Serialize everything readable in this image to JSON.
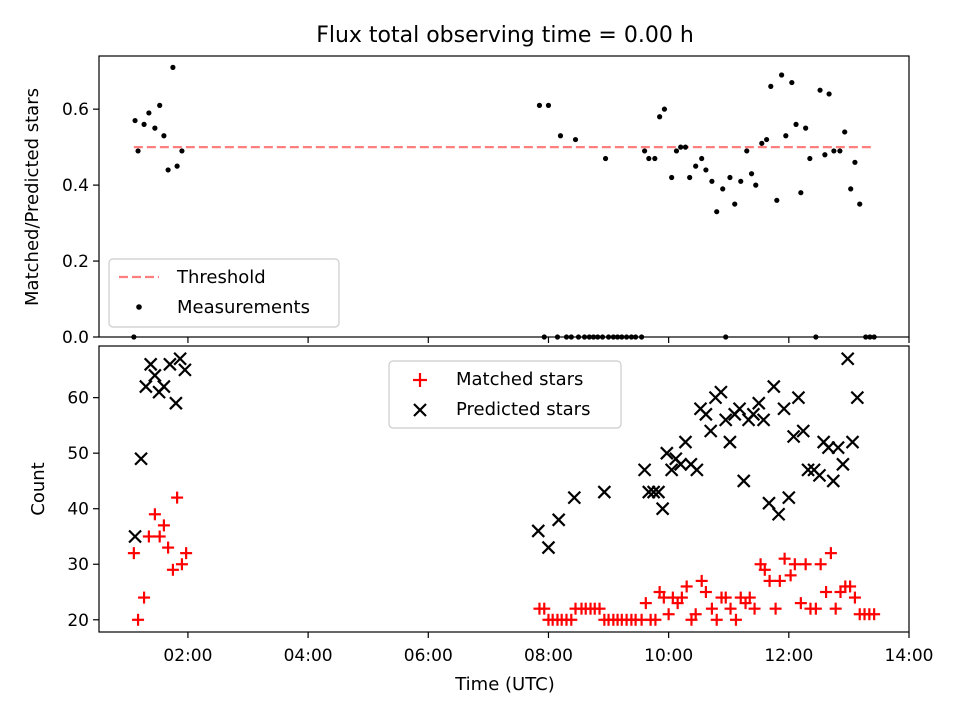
{
  "title": "Flux total observing time = 0.00 h",
  "chart_data": [
    {
      "type": "scatter",
      "panel": "top",
      "ylabel": "Matched/Predicted stars",
      "ylim": [
        0,
        0.74
      ],
      "yticks": [
        0.0,
        0.2,
        0.4,
        0.6
      ],
      "ytick_labels": [
        "0.0",
        "0.2",
        "0.4",
        "0.6"
      ],
      "xlim": [
        0.52,
        14.0
      ],
      "threshold": {
        "name": "Threshold",
        "value": 0.5,
        "x_range": [
          1.1,
          13.4
        ],
        "color": "#ff7f7f"
      },
      "legend": {
        "position": "lower-left",
        "entries": [
          {
            "label": "Threshold",
            "kind": "dashed-line",
            "color": "#ff7f7f"
          },
          {
            "label": "Measurements",
            "kind": "dot",
            "color": "#000000"
          }
        ]
      },
      "series": [
        {
          "name": "Measurements",
          "color": "#000000",
          "points": [
            [
              1.1,
              0.0
            ],
            [
              1.12,
              0.57
            ],
            [
              1.17,
              0.49
            ],
            [
              1.27,
              0.56
            ],
            [
              1.35,
              0.59
            ],
            [
              1.45,
              0.55
            ],
            [
              1.53,
              0.61
            ],
            [
              1.6,
              0.53
            ],
            [
              1.67,
              0.44
            ],
            [
              1.75,
              0.71
            ],
            [
              1.82,
              0.45
            ],
            [
              1.9,
              0.49
            ],
            [
              7.85,
              0.61
            ],
            [
              7.93,
              0.0
            ],
            [
              8.0,
              0.61
            ],
            [
              8.15,
              0.0
            ],
            [
              8.2,
              0.53
            ],
            [
              8.3,
              0.0
            ],
            [
              8.38,
              0.0
            ],
            [
              8.45,
              0.52
            ],
            [
              8.5,
              0.0
            ],
            [
              8.6,
              0.0
            ],
            [
              8.68,
              0.0
            ],
            [
              8.75,
              0.0
            ],
            [
              8.82,
              0.0
            ],
            [
              8.9,
              0.0
            ],
            [
              8.95,
              0.47
            ],
            [
              9.0,
              0.0
            ],
            [
              9.08,
              0.0
            ],
            [
              9.15,
              0.0
            ],
            [
              9.22,
              0.0
            ],
            [
              9.3,
              0.0
            ],
            [
              9.38,
              0.0
            ],
            [
              9.45,
              0.0
            ],
            [
              9.55,
              0.0
            ],
            [
              9.6,
              0.49
            ],
            [
              9.67,
              0.47
            ],
            [
              9.77,
              0.47
            ],
            [
              9.85,
              0.58
            ],
            [
              9.93,
              0.6
            ],
            [
              10.05,
              0.42
            ],
            [
              10.13,
              0.49
            ],
            [
              10.2,
              0.5
            ],
            [
              10.28,
              0.5
            ],
            [
              10.35,
              0.42
            ],
            [
              10.45,
              0.45
            ],
            [
              10.55,
              0.47
            ],
            [
              10.62,
              0.44
            ],
            [
              10.72,
              0.41
            ],
            [
              10.8,
              0.33
            ],
            [
              10.9,
              0.39
            ],
            [
              10.95,
              0.0
            ],
            [
              11.02,
              0.42
            ],
            [
              11.1,
              0.35
            ],
            [
              11.2,
              0.41
            ],
            [
              11.3,
              0.49
            ],
            [
              11.38,
              0.43
            ],
            [
              11.45,
              0.4
            ],
            [
              11.55,
              0.51
            ],
            [
              11.63,
              0.52
            ],
            [
              11.7,
              0.66
            ],
            [
              11.8,
              0.36
            ],
            [
              11.88,
              0.69
            ],
            [
              11.95,
              0.53
            ],
            [
              12.05,
              0.67
            ],
            [
              12.12,
              0.56
            ],
            [
              12.2,
              0.38
            ],
            [
              12.28,
              0.55
            ],
            [
              12.35,
              0.47
            ],
            [
              12.45,
              0.0
            ],
            [
              12.52,
              0.65
            ],
            [
              12.6,
              0.48
            ],
            [
              12.67,
              0.64
            ],
            [
              12.75,
              0.49
            ],
            [
              12.85,
              0.49
            ],
            [
              12.93,
              0.54
            ],
            [
              13.03,
              0.39
            ],
            [
              13.1,
              0.46
            ],
            [
              13.18,
              0.35
            ],
            [
              13.28,
              0.0
            ],
            [
              13.35,
              0.0
            ],
            [
              13.42,
              0.0
            ]
          ]
        }
      ]
    },
    {
      "type": "scatter",
      "panel": "bottom",
      "xlabel": "Time (UTC)",
      "ylabel": "Count",
      "xlim": [
        0.52,
        14.0
      ],
      "xticks": [
        2,
        4,
        6,
        8,
        10,
        12,
        14
      ],
      "xtick_labels": [
        "02:00",
        "04:00",
        "06:00",
        "08:00",
        "10:00",
        "12:00",
        "14:00"
      ],
      "ylim": [
        17.8,
        69.3
      ],
      "yticks": [
        20,
        30,
        40,
        50,
        60
      ],
      "ytick_labels": [
        "20",
        "30",
        "40",
        "50",
        "60"
      ],
      "legend": {
        "position": "upper-center",
        "entries": [
          {
            "label": "Matched stars",
            "kind": "plus",
            "color": "#ff0000"
          },
          {
            "label": "Predicted stars",
            "kind": "cross",
            "color": "#000000"
          }
        ]
      },
      "series": [
        {
          "name": "Matched stars",
          "color": "#ff0000",
          "marker": "plus",
          "points": [
            [
              1.1,
              32
            ],
            [
              1.17,
              20
            ],
            [
              1.27,
              24
            ],
            [
              1.35,
              35
            ],
            [
              1.45,
              39
            ],
            [
              1.53,
              35
            ],
            [
              1.6,
              37
            ],
            [
              1.67,
              33
            ],
            [
              1.75,
              29
            ],
            [
              1.82,
              42
            ],
            [
              1.9,
              30
            ],
            [
              1.97,
              32
            ],
            [
              7.85,
              22
            ],
            [
              7.93,
              22
            ],
            [
              8.0,
              20
            ],
            [
              8.07,
              20
            ],
            [
              8.15,
              20
            ],
            [
              8.22,
              20
            ],
            [
              8.3,
              20
            ],
            [
              8.38,
              20
            ],
            [
              8.45,
              22
            ],
            [
              8.55,
              22
            ],
            [
              8.62,
              22
            ],
            [
              8.7,
              22
            ],
            [
              8.77,
              22
            ],
            [
              8.85,
              22
            ],
            [
              8.93,
              20
            ],
            [
              9.0,
              20
            ],
            [
              9.08,
              20
            ],
            [
              9.15,
              20
            ],
            [
              9.22,
              20
            ],
            [
              9.3,
              20
            ],
            [
              9.38,
              20
            ],
            [
              9.45,
              20
            ],
            [
              9.55,
              20
            ],
            [
              9.62,
              23
            ],
            [
              9.7,
              20
            ],
            [
              9.78,
              20
            ],
            [
              9.85,
              25
            ],
            [
              9.92,
              24
            ],
            [
              10.0,
              21
            ],
            [
              10.07,
              24
            ],
            [
              10.15,
              23
            ],
            [
              10.22,
              24
            ],
            [
              10.3,
              26
            ],
            [
              10.38,
              20
            ],
            [
              10.45,
              21
            ],
            [
              10.55,
              27
            ],
            [
              10.62,
              25
            ],
            [
              10.72,
              22
            ],
            [
              10.8,
              20
            ],
            [
              10.88,
              24
            ],
            [
              10.95,
              24
            ],
            [
              11.03,
              22
            ],
            [
              11.12,
              20
            ],
            [
              11.2,
              24
            ],
            [
              11.28,
              23
            ],
            [
              11.35,
              24
            ],
            [
              11.43,
              22
            ],
            [
              11.53,
              30
            ],
            [
              11.6,
              29
            ],
            [
              11.68,
              27
            ],
            [
              11.78,
              22
            ],
            [
              11.85,
              27
            ],
            [
              11.93,
              31
            ],
            [
              12.03,
              28
            ],
            [
              12.1,
              30
            ],
            [
              12.2,
              23
            ],
            [
              12.28,
              30
            ],
            [
              12.36,
              22
            ],
            [
              12.45,
              22
            ],
            [
              12.53,
              30
            ],
            [
              12.62,
              25
            ],
            [
              12.7,
              32
            ],
            [
              12.78,
              22
            ],
            [
              12.86,
              25
            ],
            [
              12.94,
              26
            ],
            [
              13.02,
              26
            ],
            [
              13.1,
              24
            ],
            [
              13.18,
              21
            ],
            [
              13.26,
              21
            ],
            [
              13.34,
              21
            ],
            [
              13.42,
              21
            ]
          ]
        },
        {
          "name": "Predicted stars",
          "color": "#000000",
          "marker": "cross",
          "points": [
            [
              1.12,
              35
            ],
            [
              1.22,
              49
            ],
            [
              1.3,
              62
            ],
            [
              1.38,
              66
            ],
            [
              1.45,
              64
            ],
            [
              1.52,
              61
            ],
            [
              1.6,
              62
            ],
            [
              1.7,
              66
            ],
            [
              1.8,
              59
            ],
            [
              1.87,
              67
            ],
            [
              1.95,
              65
            ],
            [
              7.83,
              36
            ],
            [
              8.0,
              33
            ],
            [
              8.17,
              38
            ],
            [
              8.43,
              42
            ],
            [
              8.93,
              43
            ],
            [
              9.6,
              47
            ],
            [
              9.67,
              43
            ],
            [
              9.75,
              43
            ],
            [
              9.83,
              43
            ],
            [
              9.9,
              40
            ],
            [
              9.97,
              50
            ],
            [
              10.05,
              47
            ],
            [
              10.12,
              49
            ],
            [
              10.2,
              48
            ],
            [
              10.28,
              52
            ],
            [
              10.37,
              48
            ],
            [
              10.47,
              47
            ],
            [
              10.53,
              58
            ],
            [
              10.62,
              57
            ],
            [
              10.7,
              54
            ],
            [
              10.78,
              60
            ],
            [
              10.87,
              61
            ],
            [
              10.95,
              56
            ],
            [
              11.02,
              52
            ],
            [
              11.1,
              57
            ],
            [
              11.18,
              58
            ],
            [
              11.25,
              45
            ],
            [
              11.33,
              56
            ],
            [
              11.41,
              57
            ],
            [
              11.5,
              59
            ],
            [
              11.58,
              56
            ],
            [
              11.67,
              41
            ],
            [
              11.75,
              62
            ],
            [
              11.83,
              39
            ],
            [
              11.92,
              58
            ],
            [
              12.0,
              42
            ],
            [
              12.08,
              53
            ],
            [
              12.16,
              60
            ],
            [
              12.24,
              54
            ],
            [
              12.32,
              47
            ],
            [
              12.42,
              47
            ],
            [
              12.51,
              46
            ],
            [
              12.58,
              52
            ],
            [
              12.66,
              51
            ],
            [
              12.74,
              45
            ],
            [
              12.82,
              51
            ],
            [
              12.9,
              48
            ],
            [
              12.98,
              67
            ],
            [
              13.06,
              52
            ],
            [
              13.14,
              60
            ]
          ]
        }
      ]
    }
  ]
}
